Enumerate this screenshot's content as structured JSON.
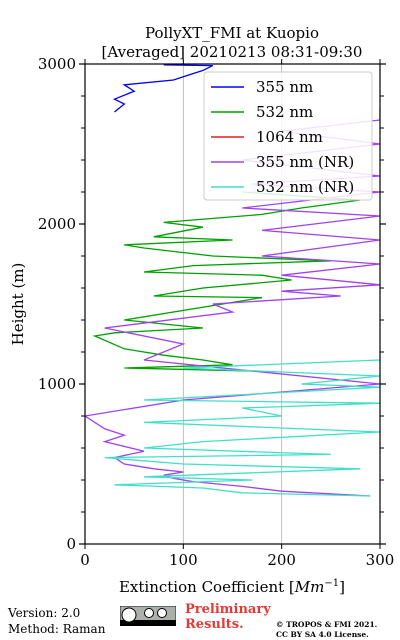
{
  "chart_data": {
    "type": "line",
    "title": "PollyXT_FMI at Kuopio",
    "subtitle": "[Averaged] 20210213 08:31-09:30",
    "xlabel": "Extinction Coefficient [",
    "xlabel_unit": "Mm",
    "xlabel_exp": "−1",
    "xlabel_close": "]",
    "ylabel": "Height (m)",
    "xlim": [
      0,
      300
    ],
    "ylim": [
      0,
      3000
    ],
    "xticks": [
      "0",
      "100",
      "200",
      "300"
    ],
    "yticks": [
      "0",
      "1000",
      "2000",
      "3000"
    ],
    "xgrid": [
      100,
      200
    ],
    "legend_position": "top-right",
    "series": [
      {
        "name": "355 nm",
        "color": "#0000ff",
        "points": [
          [
            30,
            2700
          ],
          [
            40,
            2750
          ],
          [
            30,
            2780
          ],
          [
            50,
            2830
          ],
          [
            40,
            2870
          ],
          [
            90,
            2900
          ],
          [
            100,
            2920
          ],
          [
            120,
            2960
          ],
          [
            130,
            2990
          ],
          [
            80,
            2995
          ]
        ]
      },
      {
        "name": "532 nm",
        "color": "#00a000",
        "points": [
          [
            180,
            1080
          ],
          [
            40,
            1100
          ],
          [
            150,
            1120
          ],
          [
            120,
            1150
          ],
          [
            80,
            1180
          ],
          [
            40,
            1220
          ],
          [
            10,
            1300
          ],
          [
            30,
            1320
          ],
          [
            120,
            1350
          ],
          [
            40,
            1400
          ],
          [
            180,
            1540
          ],
          [
            70,
            1550
          ],
          [
            120,
            1600
          ],
          [
            210,
            1650
          ],
          [
            180,
            1680
          ],
          [
            60,
            1700
          ],
          [
            110,
            1740
          ],
          [
            250,
            1770
          ],
          [
            130,
            1800
          ],
          [
            60,
            1850
          ],
          [
            40,
            1870
          ],
          [
            150,
            1900
          ],
          [
            70,
            1920
          ],
          [
            120,
            1980
          ],
          [
            80,
            2010
          ],
          [
            180,
            2060
          ],
          [
            220,
            2100
          ],
          [
            280,
            2150
          ],
          [
            160,
            2200
          ]
        ]
      },
      {
        "name": "1064 nm",
        "color": "#e02020",
        "points": []
      },
      {
        "name": "355 nm (NR)",
        "color": "#a040f0",
        "points": [
          [
            290,
            300
          ],
          [
            200,
            330
          ],
          [
            160,
            360
          ],
          [
            110,
            390
          ],
          [
            90,
            410
          ],
          [
            80,
            430
          ],
          [
            100,
            450
          ],
          [
            70,
            470
          ],
          [
            40,
            500
          ],
          [
            30,
            540
          ],
          [
            60,
            580
          ],
          [
            20,
            640
          ],
          [
            40,
            680
          ],
          [
            20,
            720
          ],
          [
            10,
            760
          ],
          [
            0,
            800
          ],
          [
            100,
            900
          ],
          [
            300,
            1000
          ],
          [
            60,
            1150
          ],
          [
            100,
            1250
          ],
          [
            20,
            1350
          ],
          [
            150,
            1450
          ],
          [
            130,
            1500
          ],
          [
            260,
            1550
          ],
          [
            200,
            1580
          ],
          [
            300,
            1620
          ],
          [
            200,
            1680
          ],
          [
            300,
            1750
          ],
          [
            180,
            1800
          ],
          [
            300,
            1900
          ],
          [
            180,
            1960
          ],
          [
            300,
            2050
          ],
          [
            160,
            2100
          ],
          [
            300,
            2200
          ],
          [
            170,
            2250
          ],
          [
            300,
            2300
          ],
          [
            160,
            2400
          ],
          [
            300,
            2500
          ],
          [
            200,
            2580
          ],
          [
            300,
            2650
          ],
          [
            300,
            2720
          ]
        ]
      },
      {
        "name": "532 nm (NR)",
        "color": "#40e0c8",
        "points": [
          [
            290,
            300
          ],
          [
            160,
            320
          ],
          [
            120,
            350
          ],
          [
            30,
            370
          ],
          [
            170,
            400
          ],
          [
            60,
            420
          ],
          [
            280,
            470
          ],
          [
            100,
            500
          ],
          [
            20,
            540
          ],
          [
            250,
            560
          ],
          [
            60,
            600
          ],
          [
            120,
            640
          ],
          [
            300,
            700
          ],
          [
            60,
            760
          ],
          [
            200,
            800
          ],
          [
            160,
            850
          ],
          [
            300,
            880
          ],
          [
            60,
            900
          ],
          [
            300,
            980
          ],
          [
            220,
            1000
          ],
          [
            300,
            1050
          ],
          [
            100,
            1100
          ],
          [
            300,
            1150
          ],
          [
            300,
            1180
          ]
        ]
      }
    ]
  },
  "footer": {
    "version": "Version: 2.0",
    "method": "Method: Raman",
    "preliminary_line1": "Preliminary",
    "preliminary_line2": "Results.",
    "copyright_line1": "© TROPOS & FMI 2021.",
    "copyright_line2": "CC BY SA 4.0 License."
  }
}
